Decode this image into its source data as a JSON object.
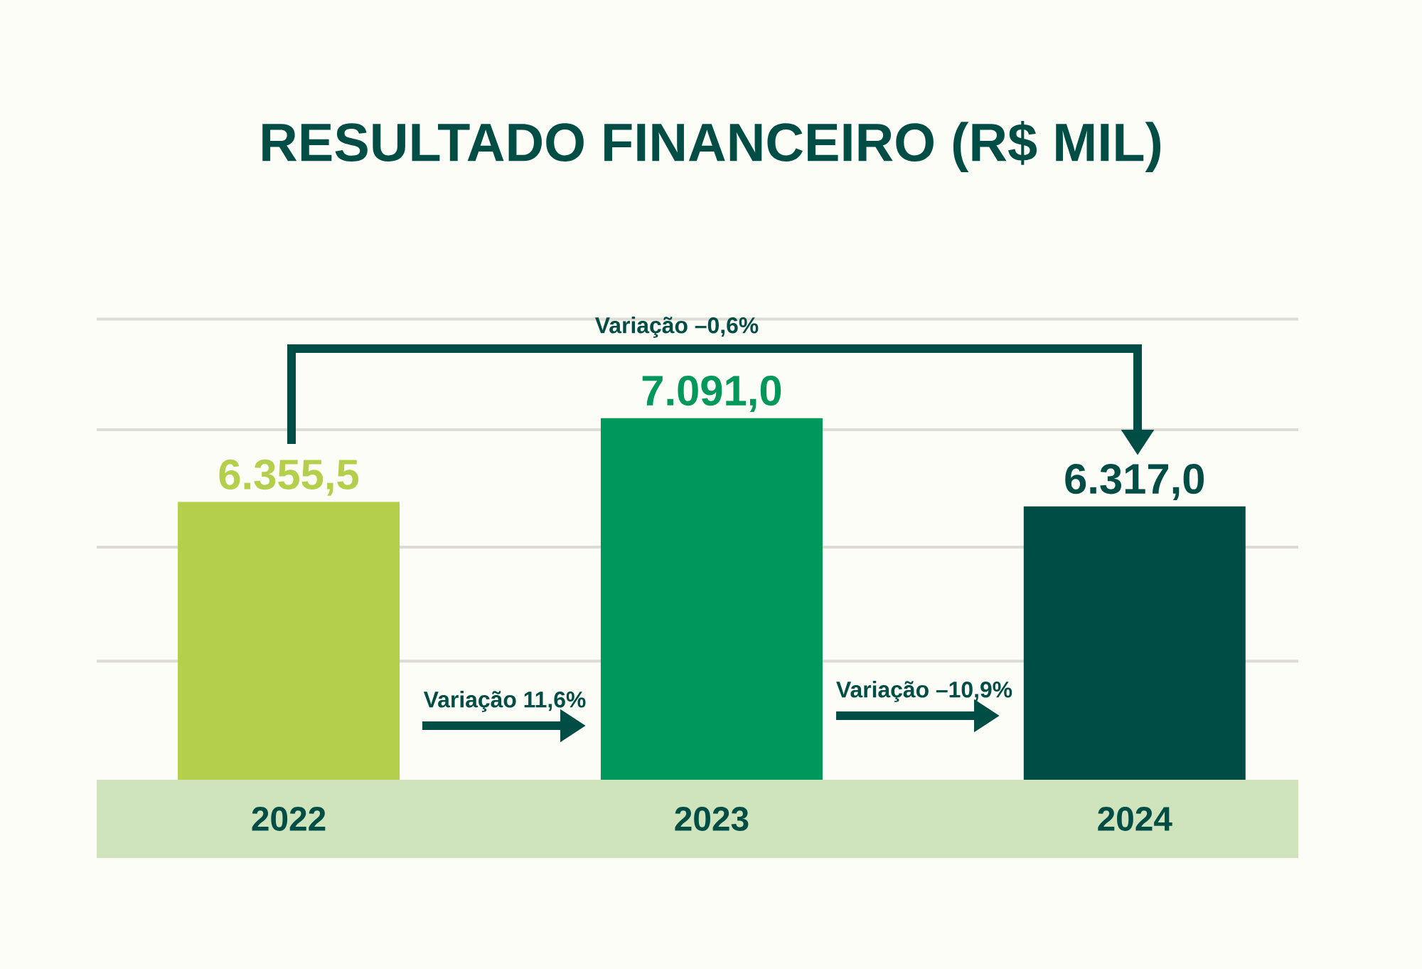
{
  "chart_data": {
    "type": "bar",
    "title": "RESULTADO FINANCEIRO (R$ MIL)",
    "categories": [
      "2022",
      "2023",
      "2024"
    ],
    "values": [
      6355.5,
      7091.0,
      6317.0
    ],
    "colors": [
      "#b3cf4b",
      "#00985a",
      "#004d45"
    ],
    "value_labels": [
      "6.355,5",
      "7.091,0",
      "6.317,0"
    ],
    "ylim": [
      3920,
      8000
    ],
    "yticks": [
      {
        "value": 4960,
        "label": null
      },
      {
        "value": 5960,
        "label": null
      },
      {
        "value": 6990,
        "label": null
      },
      {
        "value": 7960,
        "label": null
      }
    ],
    "grid": "y",
    "annotations": [
      "Variação –0,6%",
      "Variação 11,6%",
      "Variação –10,9%"
    ]
  }
}
